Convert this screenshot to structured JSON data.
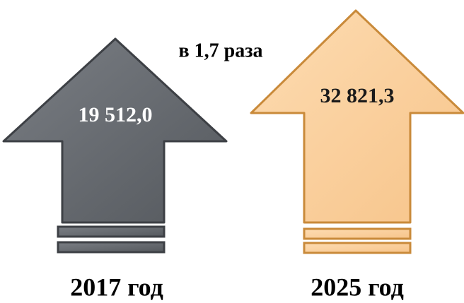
{
  "left": {
    "value": "19 512,0",
    "year": "2017 год"
  },
  "right": {
    "value": "32 821,3",
    "year": "2025 год"
  },
  "ratio": "в 1,7 раза"
}
